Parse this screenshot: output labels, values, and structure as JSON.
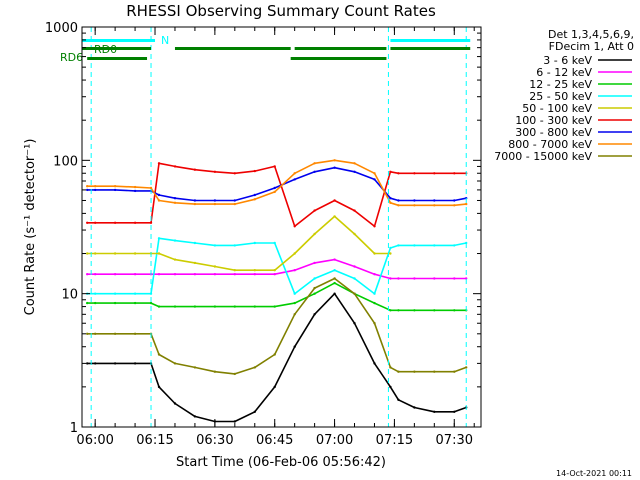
{
  "chart_data": {
    "type": "line",
    "title": "RHESSI Observing Summary Count Rates",
    "xlabel": "Start Time (06-Feb-06 05:56:42)",
    "ylabel": "Count Rate (s⁻¹ detector⁻¹)",
    "yscale": "log",
    "ylim": [
      1,
      1000
    ],
    "xlim": [
      "05:56:42",
      "07:36:42"
    ],
    "x_ticks": [
      "06:00",
      "06:15",
      "06:30",
      "06:45",
      "07:00",
      "07:15",
      "07:30"
    ],
    "y_ticks": [
      "1",
      "10",
      "100",
      "1000"
    ],
    "legend_header": [
      "Det 1,3,4,5,6,9,",
      "FDecim 1, Att 0"
    ],
    "legend_position": "right",
    "footer_date": "14-Oct-2021 00:11",
    "grid": false,
    "annotations": {
      "rd0_label": "RD0",
      "rd6_label": "RD6",
      "n_label": "N",
      "n_segments": [
        [
          "05:56:42",
          "06:15:00"
        ],
        [
          "07:14:00",
          "07:34:00"
        ]
      ],
      "rd0_segments": [
        [
          "05:56:42",
          "06:14:00"
        ],
        [
          "06:20:00",
          "06:49:00"
        ],
        [
          "06:50:00",
          "07:13:00"
        ],
        [
          "07:14:00",
          "07:34:00"
        ]
      ],
      "rd6_segments": [
        [
          "05:58:00",
          "06:13:00"
        ],
        [
          "06:49:00",
          "07:13:00"
        ]
      ],
      "dashed_markers": [
        "05:59:00",
        "06:14:00",
        "07:13:30",
        "07:33:00"
      ],
      "marker_color": "#00ffff",
      "bar_color": "#008000"
    },
    "series": [
      {
        "name": "3 - 6 keV",
        "color": "#000000",
        "x": [
          "05:58",
          "06:00",
          "06:05",
          "06:10",
          "06:14",
          "06:16",
          "06:20",
          "06:25",
          "06:30",
          "06:35",
          "06:40",
          "06:45",
          "06:50",
          "06:55",
          "07:00",
          "07:05",
          "07:10",
          "07:14",
          "07:16",
          "07:20",
          "07:25",
          "07:30",
          "07:33"
        ],
        "y": [
          3.0,
          3.0,
          3.0,
          3.0,
          3.0,
          2.0,
          1.5,
          1.2,
          1.1,
          1.1,
          1.3,
          2.0,
          4.0,
          7.0,
          10.0,
          6.0,
          3.0,
          2.0,
          1.6,
          1.4,
          1.3,
          1.3,
          1.4
        ]
      },
      {
        "name": "6 - 12 keV",
        "color": "#ff00ff",
        "x": [
          "05:58",
          "06:00",
          "06:05",
          "06:10",
          "06:14",
          "06:16",
          "06:20",
          "06:25",
          "06:30",
          "06:35",
          "06:40",
          "06:45",
          "06:50",
          "06:55",
          "07:00",
          "07:05",
          "07:10",
          "07:14",
          "07:16",
          "07:20",
          "07:25",
          "07:30",
          "07:33"
        ],
        "y": [
          14,
          14,
          14,
          14,
          14,
          14,
          14,
          14,
          14,
          14,
          14,
          14,
          15,
          17,
          18,
          16,
          14,
          13,
          13,
          13,
          13,
          13,
          13
        ]
      },
      {
        "name": "12 - 25 keV",
        "color": "#00cc00",
        "x": [
          "05:58",
          "06:00",
          "06:05",
          "06:10",
          "06:14",
          "06:16",
          "06:20",
          "06:25",
          "06:30",
          "06:35",
          "06:40",
          "06:45",
          "06:50",
          "06:55",
          "07:00",
          "07:05",
          "07:10",
          "07:14",
          "07:16",
          "07:20",
          "07:25",
          "07:30",
          "07:33"
        ],
        "y": [
          8.5,
          8.5,
          8.5,
          8.5,
          8.5,
          8.0,
          8.0,
          8.0,
          8.0,
          8.0,
          8.0,
          8.0,
          8.5,
          10,
          12,
          10,
          8.5,
          7.5,
          7.5,
          7.5,
          7.5,
          7.5,
          7.5
        ]
      },
      {
        "name": "25 - 50 keV",
        "color": "#00ffff",
        "x": [
          "05:58",
          "06:00",
          "06:05",
          "06:10",
          "06:14",
          "06:16",
          "06:20",
          "06:25",
          "06:30",
          "06:35",
          "06:40",
          "06:45",
          "06:50",
          "06:55",
          "07:00",
          "07:05",
          "07:10",
          "07:14",
          "07:16",
          "07:20",
          "07:25",
          "07:30",
          "07:33"
        ],
        "y": [
          10,
          10,
          10,
          10,
          10,
          26,
          25,
          24,
          23,
          23,
          24,
          24,
          10,
          13,
          15,
          13,
          10,
          22,
          23,
          23,
          23,
          23,
          24
        ]
      },
      {
        "name": "50 - 100 keV",
        "color": "#cccc00",
        "x": [
          "05:58",
          "06:00",
          "06:05",
          "06:10",
          "06:14",
          "06:16",
          "06:20",
          "06:25",
          "06:30",
          "06:35",
          "06:40",
          "06:45",
          "06:50",
          "06:55",
          "07:00",
          "07:05",
          "07:10",
          "07:14"
        ],
        "y": [
          20,
          20,
          20,
          20,
          20,
          20,
          18,
          17,
          16,
          15,
          15,
          15,
          20,
          28,
          38,
          28,
          20,
          20
        ]
      },
      {
        "name": "100 - 300 keV",
        "color": "#ee0000",
        "x": [
          "05:58",
          "06:00",
          "06:05",
          "06:10",
          "06:14",
          "06:16",
          "06:20",
          "06:25",
          "06:30",
          "06:35",
          "06:40",
          "06:45",
          "06:50",
          "06:55",
          "07:00",
          "07:05",
          "07:10",
          "07:14",
          "07:16",
          "07:20",
          "07:25",
          "07:30",
          "07:33"
        ],
        "y": [
          34,
          34,
          34,
          34,
          34,
          95,
          90,
          85,
          82,
          80,
          83,
          90,
          32,
          42,
          50,
          42,
          32,
          82,
          80,
          80,
          80,
          80,
          80
        ]
      },
      {
        "name": "300 - 800 keV",
        "color": "#0000ee",
        "x": [
          "05:58",
          "06:00",
          "06:05",
          "06:10",
          "06:14",
          "06:16",
          "06:20",
          "06:25",
          "06:30",
          "06:35",
          "06:40",
          "06:45",
          "06:50",
          "06:55",
          "07:00",
          "07:05",
          "07:10",
          "07:14",
          "07:16",
          "07:20",
          "07:25",
          "07:30",
          "07:33"
        ],
        "y": [
          60,
          60,
          60,
          59,
          59,
          55,
          52,
          50,
          50,
          50,
          55,
          62,
          72,
          82,
          88,
          82,
          72,
          52,
          50,
          50,
          50,
          50,
          52
        ]
      },
      {
        "name": "800 - 7000 keV",
        "color": "#ff8800",
        "x": [
          "05:58",
          "06:00",
          "06:05",
          "06:10",
          "06:14",
          "06:16",
          "06:20",
          "06:25",
          "06:30",
          "06:35",
          "06:40",
          "06:45",
          "06:50",
          "06:55",
          "07:00",
          "07:05",
          "07:10",
          "07:14",
          "07:16",
          "07:20",
          "07:25",
          "07:30",
          "07:33"
        ],
        "y": [
          64,
          64,
          64,
          63,
          62,
          50,
          48,
          47,
          47,
          47,
          51,
          58,
          80,
          95,
          100,
          95,
          80,
          48,
          46,
          46,
          46,
          46,
          47
        ]
      },
      {
        "name": "7000 - 15000 keV",
        "color": "#808000",
        "x": [
          "05:58",
          "06:00",
          "06:05",
          "06:10",
          "06:14",
          "06:16",
          "06:20",
          "06:25",
          "06:30",
          "06:35",
          "06:40",
          "06:45",
          "06:50",
          "06:55",
          "07:00",
          "07:05",
          "07:10",
          "07:14",
          "07:16",
          "07:20",
          "07:25",
          "07:30",
          "07:33"
        ],
        "y": [
          5.0,
          5.0,
          5.0,
          5.0,
          5.0,
          3.5,
          3.0,
          2.8,
          2.6,
          2.5,
          2.8,
          3.5,
          7.0,
          11,
          13,
          10,
          6.0,
          2.8,
          2.6,
          2.6,
          2.6,
          2.6,
          2.8
        ]
      }
    ]
  }
}
